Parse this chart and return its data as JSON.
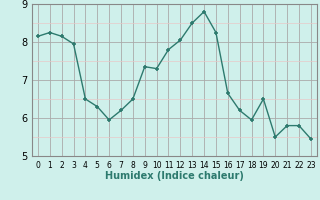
{
  "x": [
    0,
    1,
    2,
    3,
    4,
    5,
    6,
    7,
    8,
    9,
    10,
    11,
    12,
    13,
    14,
    15,
    16,
    17,
    18,
    19,
    20,
    21,
    22,
    23
  ],
  "y": [
    8.15,
    8.25,
    8.15,
    7.95,
    6.5,
    6.3,
    5.95,
    6.2,
    6.5,
    7.35,
    7.3,
    7.8,
    8.05,
    8.5,
    8.8,
    8.25,
    6.65,
    6.2,
    5.95,
    6.5,
    5.5,
    5.8,
    5.8,
    5.45
  ],
  "line_color": "#2d7a6e",
  "marker": "+",
  "marker_size": 3.5,
  "linewidth": 1.0,
  "xlabel": "Humidex (Indice chaleur)",
  "xlabel_fontsize": 7,
  "ylim": [
    5,
    9
  ],
  "xlim": [
    -0.5,
    23.5
  ],
  "yticks": [
    5,
    6,
    7,
    8,
    9
  ],
  "xticks": [
    0,
    1,
    2,
    3,
    4,
    5,
    6,
    7,
    8,
    9,
    10,
    11,
    12,
    13,
    14,
    15,
    16,
    17,
    18,
    19,
    20,
    21,
    22,
    23
  ],
  "bg_color": "#cff0eb",
  "grid_major_color": "#aaaaaa",
  "grid_minor_color": "#e8c8c8",
  "tick_fontsize_x": 5.5,
  "tick_fontsize_y": 7
}
